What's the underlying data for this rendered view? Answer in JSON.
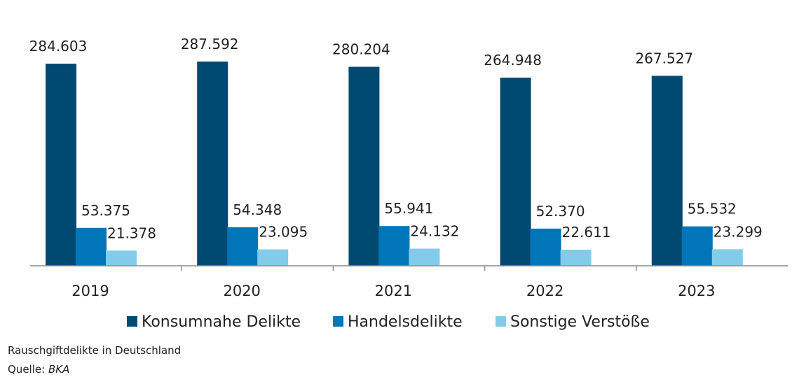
{
  "chart_data": {
    "type": "bar",
    "categories": [
      "2019",
      "2020",
      "2021",
      "2022",
      "2023"
    ],
    "series": [
      {
        "name": "Konsumnahe Delikte",
        "color": "#004a72",
        "values": [
          284603,
          287592,
          280204,
          264948,
          267527
        ],
        "labels": [
          "284.603",
          "287.592",
          "280.204",
          "264.948",
          "267.527"
        ]
      },
      {
        "name": "Handelsdelikte",
        "color": "#0076b8",
        "values": [
          53375,
          54348,
          55941,
          52370,
          55532
        ],
        "labels": [
          "53.375",
          "54.348",
          "55.941",
          "52.370",
          "55.532"
        ]
      },
      {
        "name": "Sonstige Verstöße",
        "color": "#82ccea",
        "values": [
          21378,
          23095,
          24132,
          22611,
          23299
        ],
        "labels": [
          "21.378",
          "23.095",
          "24.132",
          "22.611",
          "23.299"
        ]
      }
    ],
    "ylim": [
      0,
      300000
    ],
    "grid": false,
    "legend_position": "bottom"
  },
  "caption": {
    "title": "Rauschgiftdelikte in Deutschland",
    "source_label": "Quelle:",
    "source_value": "BKA"
  }
}
